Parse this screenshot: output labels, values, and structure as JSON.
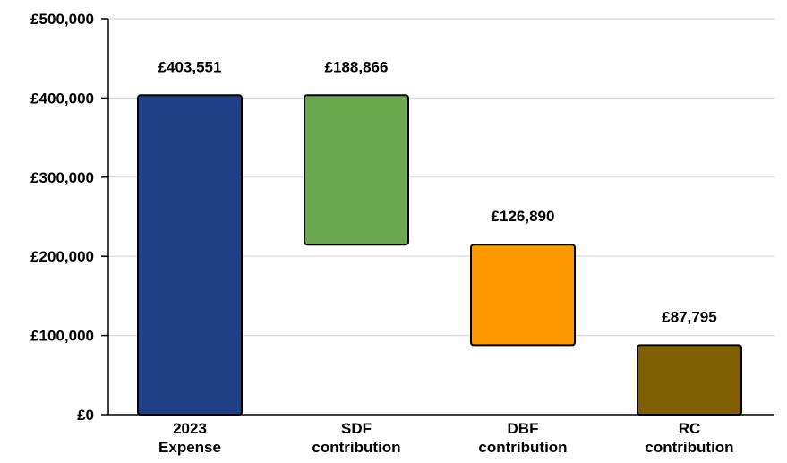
{
  "chart_data": {
    "type": "bar",
    "subtype": "waterfall",
    "title": "",
    "xlabel": "",
    "ylabel": "",
    "ylim": [
      0,
      500000
    ],
    "y_ticks": [
      0,
      100000,
      200000,
      300000,
      400000,
      500000
    ],
    "y_tick_labels": [
      "£0",
      "£100,000",
      "£200,000",
      "£300,000",
      "£400,000",
      "£500,000"
    ],
    "grid": true,
    "legend": "none",
    "categories": [
      [
        "2023",
        "Expense"
      ],
      [
        "SDF",
        "contribution"
      ],
      [
        "DBF",
        "contribution"
      ],
      [
        "RC",
        "contribution"
      ]
    ],
    "values": [
      403551,
      188866,
      126890,
      87795
    ],
    "bars": [
      {
        "start": 0,
        "end": 403551,
        "color": "#1f3f86"
      },
      {
        "start": 214685,
        "end": 403551,
        "color": "#6aa84f"
      },
      {
        "start": 87795,
        "end": 214685,
        "color": "#ff9900"
      },
      {
        "start": 0,
        "end": 87795,
        "color": "#7f6000"
      }
    ],
    "data_labels": [
      "£403,551",
      "£188,866",
      "£126,890",
      "£87,795"
    ]
  }
}
